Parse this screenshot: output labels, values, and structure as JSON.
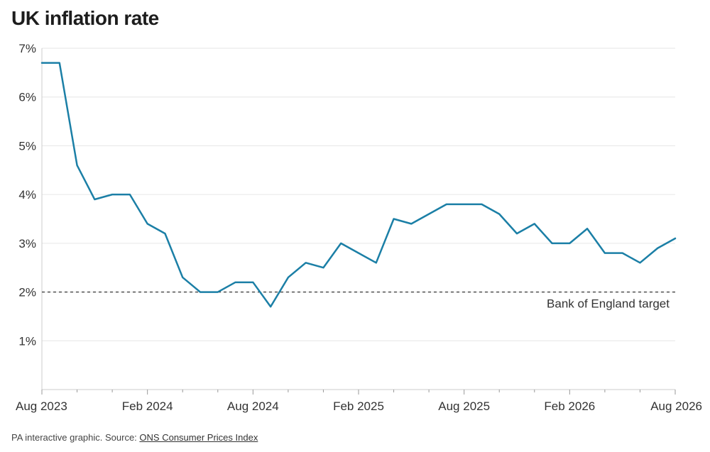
{
  "chart_data": {
    "type": "line",
    "title": "UK inflation rate",
    "y_ticks": [
      "7%",
      "6%",
      "5%",
      "4%",
      "3%",
      "2%",
      "1%"
    ],
    "y_tick_values": [
      7,
      6,
      5,
      4,
      3,
      2,
      1
    ],
    "ylim": [
      0,
      7
    ],
    "x_ticks": [
      "Aug 2023",
      "Feb 2024",
      "Aug 2024",
      "Feb 2025",
      "Aug 2025",
      "Feb 2026",
      "Aug 2026"
    ],
    "x_tick_months": [
      0,
      6,
      12,
      18,
      24,
      30,
      36
    ],
    "xlim_months": [
      0,
      36
    ],
    "grid": true,
    "series": [
      {
        "color": "#1b7fa6",
        "x": [
          "Aug 2023",
          "Sep 2023",
          "Oct 2023",
          "Nov 2023",
          "Dec 2023",
          "Jan 2024",
          "Feb 2024",
          "Mar 2024",
          "Apr 2024",
          "May 2024",
          "Jun 2024",
          "Jul 2024",
          "Aug 2024",
          "Sep 2024",
          "Oct 2024",
          "Nov 2024",
          "Dec 2024",
          "Jan 2025",
          "Feb 2025",
          "Mar 2025",
          "Apr 2025",
          "May 2025",
          "Jun 2025",
          "Jul 2025",
          "Aug 2025",
          "Sep 2025",
          "Oct 2025",
          "Nov 2025",
          "Dec 2025",
          "Jan 2026",
          "Feb 2026",
          "Mar 2026",
          "Apr 2026",
          "May 2026",
          "Jun 2026",
          "Jul 2026",
          "Aug 2026"
        ],
        "values": [
          6.7,
          6.7,
          4.6,
          3.9,
          4.0,
          4.0,
          3.4,
          3.2,
          2.3,
          2.0,
          2.0,
          2.2,
          2.2,
          1.7,
          2.3,
          2.6,
          2.5,
          3.0,
          2.8,
          2.6,
          3.5,
          3.4,
          3.6,
          3.8,
          3.8,
          3.8,
          3.6,
          3.2,
          3.4,
          3.0,
          3.0,
          3.3,
          2.8,
          2.8,
          2.6,
          2.9,
          3.1
        ]
      }
    ],
    "reference_line": {
      "value": 2,
      "label": "Bank of England target",
      "style": "dashed",
      "color": "#444444"
    }
  },
  "footer": {
    "prefix": "PA interactive graphic. Source: ",
    "source_link": "ONS Consumer Prices Index"
  },
  "colors": {
    "line": "#1b7fa6",
    "grid": "#e6e6e6",
    "axis": "#cccccc",
    "reference": "#444444"
  }
}
